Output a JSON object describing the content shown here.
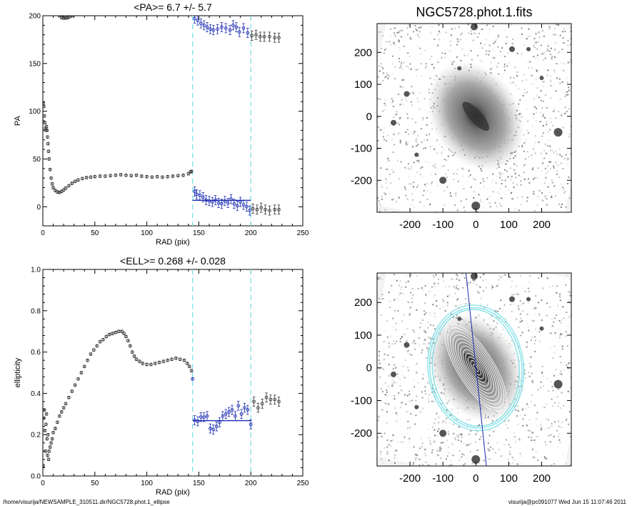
{
  "chart_data": [
    {
      "type": "scatter",
      "title": "<PA>=   6.7 +/-   5.7",
      "xlabel": "RAD (pix)",
      "ylabel": "PA",
      "xlim": [
        0,
        250
      ],
      "ylim": [
        -20,
        200
      ],
      "xticks": [
        "0",
        "50",
        "100",
        "150",
        "200",
        "250"
      ],
      "yticks": [
        "0",
        "50",
        "100",
        "150",
        "200"
      ],
      "vlines": [
        144,
        200
      ],
      "fit": {
        "x": [
          144,
          200
        ],
        "y": 6.7
      },
      "series": [
        {
          "values": [
            [
              0.5,
              108
            ],
            [
              1,
              105
            ],
            [
              1.5,
              95
            ],
            [
              2,
              88
            ],
            [
              2.5,
              82
            ],
            [
              3,
              80
            ],
            [
              3.5,
              84
            ],
            [
              4,
              80
            ],
            [
              4.5,
              73
            ],
            [
              5,
              66
            ],
            [
              5.5,
              58
            ],
            [
              6,
              50
            ],
            [
              7,
              39
            ],
            [
              8,
              30
            ],
            [
              9,
              24
            ],
            [
              10,
              20
            ],
            [
              12,
              17
            ],
            [
              14,
              15.5
            ],
            [
              16,
              15
            ],
            [
              18,
              16
            ],
            [
              20,
              17.5
            ],
            [
              22,
              19.5
            ],
            [
              25,
              22
            ],
            [
              28,
              24.5
            ],
            [
              31,
              26.5
            ],
            [
              34,
              28
            ],
            [
              38,
              29.5
            ],
            [
              42,
              30.5
            ],
            [
              46,
              31
            ],
            [
              50,
              31.5
            ],
            [
              55,
              32
            ],
            [
              60,
              32
            ],
            [
              65,
              32.5
            ],
            [
              70,
              33
            ],
            [
              75,
              33.5
            ],
            [
              80,
              33
            ],
            [
              85,
              32.5
            ],
            [
              90,
              33
            ],
            [
              95,
              32
            ],
            [
              100,
              31.5
            ],
            [
              105,
              31
            ],
            [
              110,
              31.5
            ],
            [
              115,
              31
            ],
            [
              120,
              31.5
            ],
            [
              125,
              32
            ],
            [
              130,
              32.5
            ],
            [
              135,
              33
            ],
            [
              140,
              34.5
            ],
            [
              142,
              36.5
            ],
            [
              143,
              37
            ],
            [
              146,
              16
            ],
            [
              148,
              13
            ],
            [
              151,
              12
            ],
            [
              154,
              10
            ],
            [
              157,
              7
            ],
            [
              160,
              6
            ],
            [
              163,
              5
            ],
            [
              166,
              7
            ],
            [
              169,
              4
            ],
            [
              172,
              3
            ],
            [
              175,
              6
            ],
            [
              178,
              4
            ],
            [
              181,
              8
            ],
            [
              184,
              3
            ],
            [
              187,
              1
            ],
            [
              190,
              5
            ],
            [
              193,
              2
            ],
            [
              196,
              0
            ],
            [
              199,
              -4
            ],
            [
              202,
              -2
            ],
            [
              206,
              -3
            ],
            [
              210,
              -1
            ],
            [
              214,
              -3
            ],
            [
              218,
              -4
            ],
            [
              223,
              -3
            ],
            [
              227,
              -3
            ]
          ]
        },
        {
          "values": [
            [
              16,
              200
            ],
            [
              18,
              198
            ],
            [
              20,
              197.5
            ],
            [
              22,
              197.5
            ],
            [
              24,
              198
            ],
            [
              26,
              199
            ],
            [
              28,
              200
            ],
            [
              146,
              197
            ],
            [
              149,
              195
            ],
            [
              152,
              192
            ],
            [
              155,
              190
            ],
            [
              158,
              188
            ],
            [
              161,
              186
            ],
            [
              164,
              185
            ],
            [
              168,
              186
            ],
            [
              172,
              188
            ],
            [
              176,
              187
            ],
            [
              180,
              185
            ],
            [
              183,
              190
            ],
            [
              186,
              188
            ],
            [
              189,
              183
            ],
            [
              193,
              187
            ],
            [
              197,
              182
            ],
            [
              201,
              179
            ],
            [
              205,
              180
            ],
            [
              209,
              178
            ],
            [
              213,
              178
            ],
            [
              218,
              178
            ],
            [
              223,
              177
            ],
            [
              227,
              177
            ]
          ]
        }
      ]
    },
    {
      "type": "scatter",
      "title": "<ELL>= 0.268 +/-  0.028",
      "xlabel": "RAD (pix)",
      "ylabel": "ellipticity",
      "xlim": [
        0,
        250
      ],
      "ylim": [
        0,
        1
      ],
      "xticks": [
        "0",
        "50",
        "100",
        "150",
        "200",
        "250"
      ],
      "yticks": [
        "0.0",
        "0.2",
        "0.4",
        "0.6",
        "0.8",
        "1.0"
      ],
      "vlines": [
        144,
        200
      ],
      "fit": {
        "x": [
          144,
          200
        ],
        "y": 0.268
      },
      "series": [
        {
          "values": [
            [
              0.5,
              0.05
            ],
            [
              1,
              0.28
            ],
            [
              1.5,
              0.32
            ],
            [
              2,
              0.22
            ],
            [
              2.5,
              0.12
            ],
            [
              3,
              0.25
            ],
            [
              3.5,
              0.3
            ],
            [
              4,
              0.18
            ],
            [
              4.5,
              0.1
            ],
            [
              5,
              0.2
            ],
            [
              5.5,
              0.08
            ],
            [
              6,
              0.12
            ],
            [
              7,
              0.14
            ],
            [
              8,
              0.16
            ],
            [
              9,
              0.18
            ],
            [
              10,
              0.21
            ],
            [
              12,
              0.23
            ],
            [
              14,
              0.26
            ],
            [
              16,
              0.29
            ],
            [
              18,
              0.31
            ],
            [
              20,
              0.33
            ],
            [
              22,
              0.35
            ],
            [
              25,
              0.38
            ],
            [
              28,
              0.41
            ],
            [
              31,
              0.44
            ],
            [
              34,
              0.47
            ],
            [
              37,
              0.5
            ],
            [
              40,
              0.53
            ],
            [
              43,
              0.56
            ],
            [
              46,
              0.59
            ],
            [
              49,
              0.61
            ],
            [
              52,
              0.63
            ],
            [
              55,
              0.65
            ],
            [
              58,
              0.66
            ],
            [
              61,
              0.675
            ],
            [
              64,
              0.685
            ],
            [
              67,
              0.69
            ],
            [
              70,
              0.695
            ],
            [
              73,
              0.7
            ],
            [
              76,
              0.7
            ],
            [
              78,
              0.69
            ],
            [
              80,
              0.675
            ],
            [
              82,
              0.655
            ],
            [
              84,
              0.63
            ],
            [
              86,
              0.6
            ],
            [
              88,
              0.58
            ],
            [
              90,
              0.565
            ],
            [
              93,
              0.555
            ],
            [
              96,
              0.545
            ],
            [
              100,
              0.54
            ],
            [
              104,
              0.54
            ],
            [
              108,
              0.545
            ],
            [
              112,
              0.55
            ],
            [
              116,
              0.555
            ],
            [
              120,
              0.56
            ],
            [
              124,
              0.565
            ],
            [
              128,
              0.57
            ],
            [
              132,
              0.565
            ],
            [
              136,
              0.56
            ],
            [
              139,
              0.545
            ],
            [
              141,
              0.53
            ],
            [
              143,
              0.51
            ],
            [
              144,
              0.47
            ],
            [
              146,
              0.27
            ],
            [
              149,
              0.265
            ],
            [
              152,
              0.285
            ],
            [
              155,
              0.285
            ],
            [
              158,
              0.29
            ],
            [
              161,
              0.23
            ],
            [
              164,
              0.225
            ],
            [
              167,
              0.24
            ],
            [
              170,
              0.26
            ],
            [
              173,
              0.29
            ],
            [
              176,
              0.3
            ],
            [
              179,
              0.31
            ],
            [
              182,
              0.32
            ],
            [
              185,
              0.29
            ],
            [
              188,
              0.34
            ],
            [
              191,
              0.3
            ],
            [
              194,
              0.33
            ],
            [
              197,
              0.32
            ],
            [
              200,
              0.25
            ],
            [
              203,
              0.36
            ],
            [
              207,
              0.33
            ],
            [
              211,
              0.35
            ],
            [
              215,
              0.38
            ],
            [
              219,
              0.37
            ],
            [
              223,
              0.37
            ],
            [
              227,
              0.36
            ]
          ]
        }
      ]
    },
    {
      "type": "image",
      "title": "NGC5728.phot.1.fits",
      "xlim": [
        -300,
        290
      ],
      "ylim": [
        -300,
        290
      ],
      "xticks": [
        "-200",
        "-100",
        "0",
        "100",
        "200"
      ],
      "yticks": [
        "200",
        "100",
        "0",
        "-100",
        "-200"
      ]
    },
    {
      "type": "image",
      "title": "",
      "xlim": [
        -300,
        290
      ],
      "ylim": [
        -300,
        290
      ],
      "xticks": [
        "-200",
        "-100",
        "0",
        "100",
        "200"
      ],
      "yticks": [
        "200",
        "100",
        "0",
        "-100",
        "-200"
      ],
      "contour_color": "#7fe0e6"
    }
  ],
  "footer": {
    "left": "/home/visurija/NEWSAMPLE_310511.dir/NGC5728.phot.1_ellipse",
    "right": "visurija@pc091077  Wed Jun 15 11:07:46 2011"
  },
  "colors": {
    "fit": "#1a2bb0",
    "vline": "#7fe0e6",
    "marker": "#000000"
  }
}
